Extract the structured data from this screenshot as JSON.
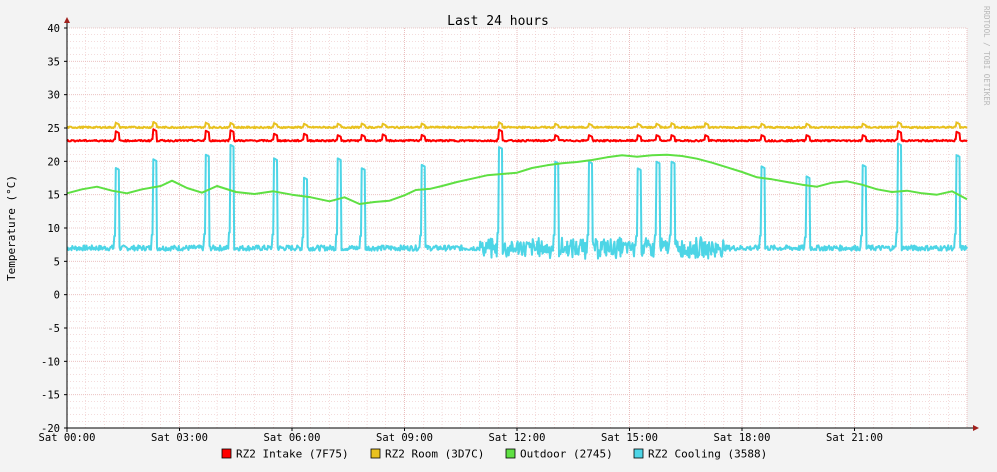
{
  "watermark": "RRDTOOL / TOBI OETIKER",
  "colors": {
    "background": "#f3f3f3",
    "plot_bg": "#ffffff",
    "grid": "#e8b8b8",
    "axis": "#000000",
    "arrow": "#a0201c",
    "intake": "#ff0000",
    "room": "#e8c11f",
    "outdoor": "#5fe043",
    "cooling": "#4dd5e6"
  },
  "chart_data": {
    "type": "line",
    "title": "Last 24 hours",
    "ylabel": "Temperature (°C)",
    "xlabel": "",
    "ylim": [
      -20,
      40
    ],
    "xlim_hours": [
      0,
      24
    ],
    "grid": true,
    "legend_position": "bottom",
    "y_ticks": [
      "40",
      "35",
      "30",
      "25",
      "20",
      "15",
      "10",
      "5",
      "0",
      "-5",
      "-10",
      "-15",
      "-20"
    ],
    "x_ticks": [
      {
        "hour": 0,
        "label": "Sat 00:00"
      },
      {
        "hour": 3,
        "label": "Sat 03:00"
      },
      {
        "hour": 6,
        "label": "Sat 06:00"
      },
      {
        "hour": 9,
        "label": "Sat 09:00"
      },
      {
        "hour": 12,
        "label": "Sat 12:00"
      },
      {
        "hour": 15,
        "label": "Sat 15:00"
      },
      {
        "hour": 18,
        "label": "Sat 18:00"
      },
      {
        "hour": 21,
        "label": "Sat 21:00"
      }
    ],
    "series": [
      {
        "name": "RZ2 Intake (7F75)",
        "color": "#ff0000",
        "baseline": 23.1,
        "spikes": [
          {
            "hour": 1.3,
            "peak": 24.5
          },
          {
            "hour": 2.3,
            "peak": 24.8
          },
          {
            "hour": 3.7,
            "peak": 24.6
          },
          {
            "hour": 4.35,
            "peak": 24.7
          },
          {
            "hour": 5.5,
            "peak": 24.2
          },
          {
            "hour": 6.3,
            "peak": 24.2
          },
          {
            "hour": 7.2,
            "peak": 24.0
          },
          {
            "hour": 7.85,
            "peak": 24.0
          },
          {
            "hour": 8.4,
            "peak": 24.1
          },
          {
            "hour": 9.45,
            "peak": 24.0
          },
          {
            "hour": 11.5,
            "peak": 24.8
          },
          {
            "hour": 13.0,
            "peak": 24.0
          },
          {
            "hour": 13.9,
            "peak": 24.0
          },
          {
            "hour": 15.2,
            "peak": 24.0
          },
          {
            "hour": 15.7,
            "peak": 24.0
          },
          {
            "hour": 16.1,
            "peak": 24.0
          },
          {
            "hour": 17.0,
            "peak": 24.0
          },
          {
            "hour": 18.5,
            "peak": 24.0
          },
          {
            "hour": 19.7,
            "peak": 24.0
          },
          {
            "hour": 21.2,
            "peak": 24.0
          },
          {
            "hour": 22.15,
            "peak": 24.6
          },
          {
            "hour": 23.7,
            "peak": 24.5
          }
        ]
      },
      {
        "name": "RZ2 Room (3D7C)",
        "color": "#e8c11f",
        "baseline": 25.1,
        "spikes": [
          {
            "hour": 1.3,
            "peak": 25.8
          },
          {
            "hour": 2.3,
            "peak": 25.9
          },
          {
            "hour": 3.7,
            "peak": 25.8
          },
          {
            "hour": 4.35,
            "peak": 25.8
          },
          {
            "hour": 5.5,
            "peak": 25.8
          },
          {
            "hour": 6.3,
            "peak": 25.7
          },
          {
            "hour": 7.2,
            "peak": 25.7
          },
          {
            "hour": 7.85,
            "peak": 25.7
          },
          {
            "hour": 8.4,
            "peak": 25.7
          },
          {
            "hour": 9.45,
            "peak": 25.7
          },
          {
            "hour": 11.5,
            "peak": 25.9
          },
          {
            "hour": 13.0,
            "peak": 25.7
          },
          {
            "hour": 13.9,
            "peak": 25.7
          },
          {
            "hour": 15.2,
            "peak": 25.7
          },
          {
            "hour": 15.7,
            "peak": 25.7
          },
          {
            "hour": 16.1,
            "peak": 25.8
          },
          {
            "hour": 17.0,
            "peak": 25.8
          },
          {
            "hour": 18.5,
            "peak": 25.7
          },
          {
            "hour": 19.7,
            "peak": 25.7
          },
          {
            "hour": 21.2,
            "peak": 25.7
          },
          {
            "hour": 22.15,
            "peak": 25.9
          },
          {
            "hour": 23.7,
            "peak": 25.9
          }
        ]
      },
      {
        "name": "Outdoor (2745)",
        "color": "#5fe043",
        "points": [
          [
            0,
            15.2
          ],
          [
            0.4,
            15.8
          ],
          [
            0.8,
            16.2
          ],
          [
            1.2,
            15.6
          ],
          [
            1.6,
            15.2
          ],
          [
            2.0,
            15.8
          ],
          [
            2.5,
            16.3
          ],
          [
            2.8,
            17.1
          ],
          [
            3.2,
            16.0
          ],
          [
            3.6,
            15.3
          ],
          [
            4.0,
            16.3
          ],
          [
            4.5,
            15.4
          ],
          [
            5.0,
            15.1
          ],
          [
            5.5,
            15.5
          ],
          [
            6.0,
            15.0
          ],
          [
            6.5,
            14.6
          ],
          [
            7.0,
            14.0
          ],
          [
            7.4,
            14.6
          ],
          [
            7.8,
            13.6
          ],
          [
            8.2,
            13.9
          ],
          [
            8.6,
            14.1
          ],
          [
            9.0,
            14.9
          ],
          [
            9.3,
            15.7
          ],
          [
            9.7,
            15.9
          ],
          [
            10.0,
            16.3
          ],
          [
            10.4,
            16.9
          ],
          [
            10.8,
            17.4
          ],
          [
            11.2,
            17.9
          ],
          [
            11.6,
            18.1
          ],
          [
            12.0,
            18.3
          ],
          [
            12.4,
            19.0
          ],
          [
            12.8,
            19.4
          ],
          [
            13.2,
            19.7
          ],
          [
            13.6,
            19.9
          ],
          [
            14.0,
            20.2
          ],
          [
            14.4,
            20.6
          ],
          [
            14.8,
            20.9
          ],
          [
            15.2,
            20.7
          ],
          [
            15.6,
            20.9
          ],
          [
            16.0,
            21.0
          ],
          [
            16.4,
            20.8
          ],
          [
            16.8,
            20.4
          ],
          [
            17.2,
            19.8
          ],
          [
            17.6,
            19.1
          ],
          [
            18.0,
            18.4
          ],
          [
            18.4,
            17.6
          ],
          [
            18.8,
            17.3
          ],
          [
            19.2,
            16.9
          ],
          [
            19.6,
            16.5
          ],
          [
            20.0,
            16.2
          ],
          [
            20.4,
            16.8
          ],
          [
            20.8,
            17.0
          ],
          [
            21.2,
            16.5
          ],
          [
            21.6,
            15.8
          ],
          [
            22.0,
            15.4
          ],
          [
            22.4,
            15.6
          ],
          [
            22.8,
            15.2
          ],
          [
            23.2,
            15.0
          ],
          [
            23.6,
            15.5
          ],
          [
            24.0,
            14.3
          ]
        ]
      },
      {
        "name": "RZ2 Cooling (3588)",
        "color": "#4dd5e6",
        "baseline": 7.0,
        "noisy_from_hour": 11.0,
        "noisy_to_hour": 17.5,
        "spikes": [
          {
            "hour": 1.3,
            "peak": 19.0
          },
          {
            "hour": 2.3,
            "peak": 20.3
          },
          {
            "hour": 3.7,
            "peak": 21.0
          },
          {
            "hour": 4.35,
            "peak": 22.5
          },
          {
            "hour": 5.5,
            "peak": 20.5
          },
          {
            "hour": 6.3,
            "peak": 17.6
          },
          {
            "hour": 7.2,
            "peak": 20.5
          },
          {
            "hour": 7.85,
            "peak": 19.0
          },
          {
            "hour": 9.45,
            "peak": 19.5
          },
          {
            "hour": 11.5,
            "peak": 22.2
          },
          {
            "hour": 13.0,
            "peak": 20.0
          },
          {
            "hour": 13.9,
            "peak": 20.0
          },
          {
            "hour": 15.2,
            "peak": 19.0
          },
          {
            "hour": 15.7,
            "peak": 20.0
          },
          {
            "hour": 16.1,
            "peak": 20.0
          },
          {
            "hour": 18.5,
            "peak": 19.3
          },
          {
            "hour": 19.7,
            "peak": 17.8
          },
          {
            "hour": 21.2,
            "peak": 19.5
          },
          {
            "hour": 22.15,
            "peak": 22.7
          },
          {
            "hour": 23.7,
            "peak": 21.0
          }
        ]
      }
    ]
  }
}
